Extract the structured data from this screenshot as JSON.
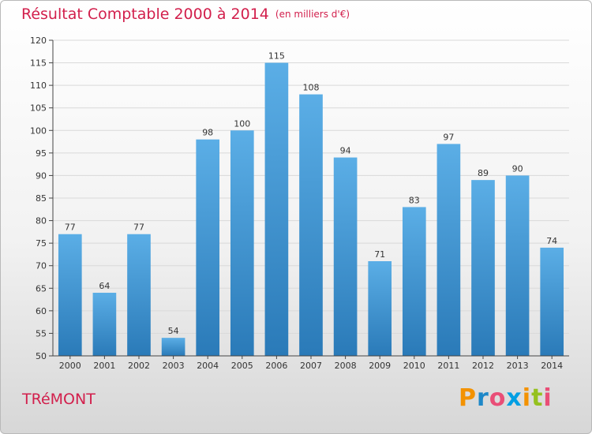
{
  "header": {
    "title": "Résultat Comptable 2000 à 2014",
    "subtitle": "(en milliers d'€)"
  },
  "commune": "TRéMONT",
  "logo": {
    "text": "Proxiti",
    "letters": [
      "P",
      "r",
      "o",
      "x",
      "i",
      "t",
      "i"
    ],
    "colors": [
      "#f39200",
      "#1e88c8",
      "#e94e77",
      "#009fe3",
      "#f39200",
      "#95c11f",
      "#e94e77"
    ]
  },
  "colors": {
    "bar_top": "#5baee6",
    "bar_bottom": "#2a7ab8",
    "grid": "#d9d9d9",
    "axis": "#444444"
  },
  "chart_data": {
    "type": "bar",
    "title": "Résultat Comptable 2000 à 2014",
    "subtitle": "(en milliers d'€)",
    "xlabel": "",
    "ylabel": "",
    "categories": [
      "2000",
      "2001",
      "2002",
      "2003",
      "2004",
      "2005",
      "2006",
      "2007",
      "2008",
      "2009",
      "2010",
      "2011",
      "2012",
      "2013",
      "2014"
    ],
    "values": [
      77,
      64,
      77,
      54,
      98,
      100,
      115,
      108,
      94,
      71,
      83,
      97,
      89,
      90,
      74
    ],
    "ylim": [
      50,
      120
    ],
    "yticks": [
      50,
      55,
      60,
      65,
      70,
      75,
      80,
      85,
      90,
      95,
      100,
      105,
      110,
      115,
      120
    ],
    "grid": true
  }
}
